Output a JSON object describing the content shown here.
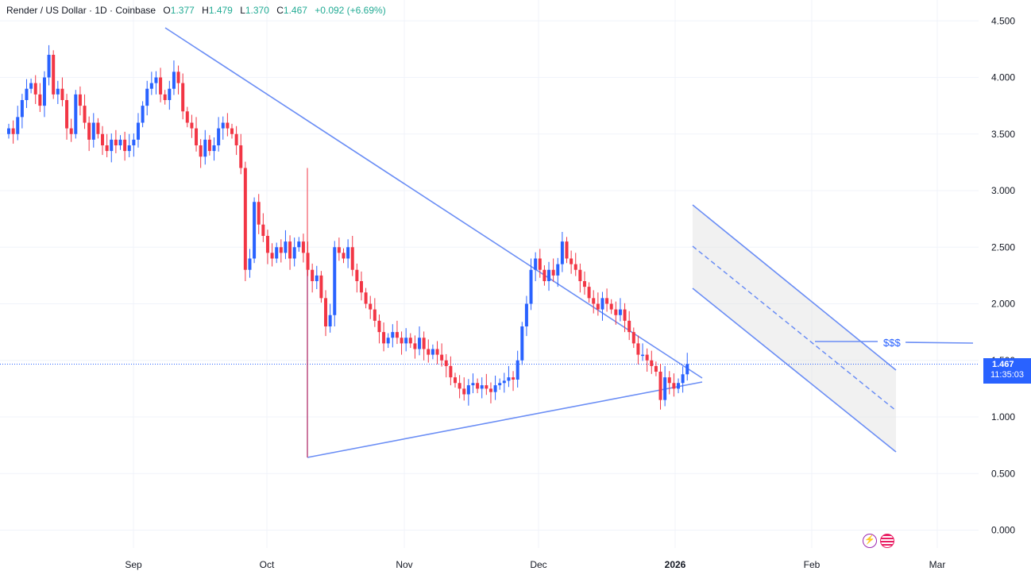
{
  "header": {
    "symbol": "Render / US Dollar · 1D · Coinbase",
    "o_label": "O",
    "o_value": "1.377",
    "h_label": "H",
    "h_value": "1.479",
    "l_label": "L",
    "l_value": "1.370",
    "c_label": "C",
    "c_value": "1.467",
    "change": "+0.092 (+6.69%)"
  },
  "price_label": {
    "price": "1.467",
    "countdown": "11:35:03"
  },
  "annotation_text": "$$$",
  "colors": {
    "up": "#2962ff",
    "down": "#f23645",
    "line": "#6b8ef5",
    "grid": "#f0f3fa",
    "channel_fill": "#e0e0e0"
  },
  "icons": [
    "lightning-icon",
    "us-flag-icon"
  ],
  "chart_data": {
    "type": "candlestick",
    "title": "Render / US Dollar · 1D · Coinbase",
    "ylim": [
      0,
      4.6
    ],
    "y_ticks": [
      "4.500",
      "4.000",
      "3.500",
      "3.000",
      "2.500",
      "2.000",
      "1.500",
      "1.000",
      "0.500",
      "0.000"
    ],
    "x_ticks": [
      "Sep",
      "Oct",
      "Nov",
      "Dec",
      "2026",
      "Feb",
      "Mar"
    ],
    "grid": true,
    "last_price": 1.467,
    "closes": [
      3.55,
      3.5,
      3.65,
      3.8,
      3.9,
      3.95,
      3.85,
      3.75,
      4.0,
      4.2,
      3.85,
      3.9,
      3.8,
      3.55,
      3.5,
      3.85,
      3.75,
      3.6,
      3.45,
      3.6,
      3.5,
      3.4,
      3.35,
      3.45,
      3.4,
      3.45,
      3.35,
      3.4,
      3.45,
      3.6,
      3.75,
      3.9,
      3.95,
      4.0,
      3.85,
      3.8,
      3.9,
      4.05,
      3.95,
      3.7,
      3.6,
      3.55,
      3.4,
      3.3,
      3.45,
      3.35,
      3.4,
      3.55,
      3.6,
      3.55,
      3.5,
      3.4,
      3.2,
      2.3,
      2.4,
      2.9,
      2.7,
      2.6,
      2.45,
      2.4,
      2.5,
      2.45,
      2.55,
      2.4,
      2.5,
      2.55,
      2.45,
      2.3,
      2.2,
      2.25,
      2.05,
      1.8,
      1.9,
      2.5,
      2.45,
      2.4,
      2.5,
      2.3,
      2.2,
      2.1,
      2.0,
      1.95,
      1.85,
      1.75,
      1.65,
      1.7,
      1.75,
      1.7,
      1.65,
      1.7,
      1.65,
      1.6,
      1.7,
      1.6,
      1.55,
      1.6,
      1.55,
      1.5,
      1.45,
      1.35,
      1.3,
      1.25,
      1.2,
      1.28,
      1.3,
      1.25,
      1.28,
      1.25,
      1.22,
      1.28,
      1.3,
      1.32,
      1.35,
      1.33,
      1.5,
      1.8,
      2.0,
      2.3,
      2.4,
      2.3,
      2.2,
      2.3,
      2.25,
      2.35,
      2.55,
      2.4,
      2.35,
      2.3,
      2.2,
      2.15,
      2.05,
      2.0,
      1.95,
      2.05,
      2.0,
      1.95,
      1.9,
      1.95,
      1.85,
      1.75,
      1.65,
      1.55,
      1.55,
      1.5,
      1.45,
      1.4,
      1.15,
      1.35,
      1.3,
      1.25,
      1.3,
      1.377,
      1.467
    ]
  }
}
